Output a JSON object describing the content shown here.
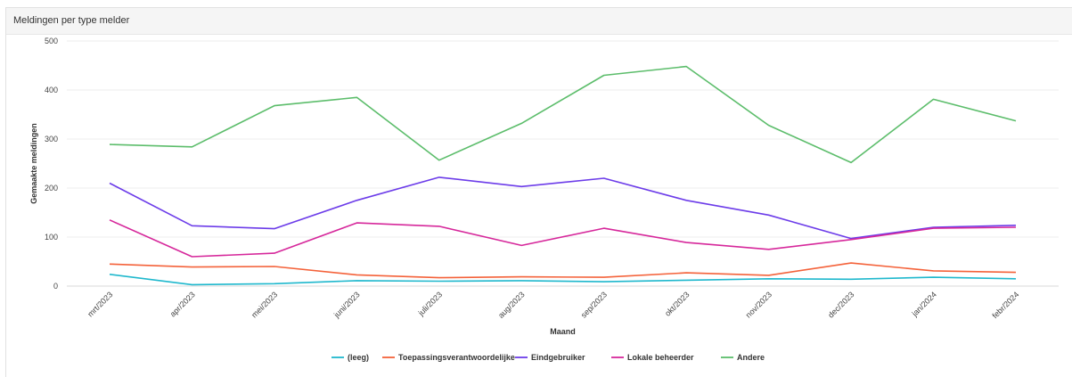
{
  "panel": {
    "title": "Meldingen per type melder"
  },
  "chart_data": {
    "type": "line",
    "title": "Meldingen per type melder",
    "xlabel": "Maand",
    "ylabel": "Gemaakte meldingen",
    "ylim": [
      0,
      500
    ],
    "yticks": [
      0,
      100,
      200,
      300,
      400,
      500
    ],
    "grid": true,
    "legend_position": "bottom",
    "categories": [
      "mrt/2023",
      "apr/2023",
      "mei/2023",
      "juni/2023",
      "juli/2023",
      "aug/2023",
      "sep/2023",
      "okt/2023",
      "nov/2023",
      "dec/2023",
      "jan/2024",
      "febr/2024"
    ],
    "series": [
      {
        "name": "(leeg)",
        "color": "#1fb8cd",
        "values": [
          24,
          3,
          5,
          11,
          10,
          11,
          9,
          12,
          15,
          14,
          18,
          15
        ]
      },
      {
        "name": "Toepassingsverantwoordelijke",
        "color": "#f4623a",
        "values": [
          45,
          39,
          40,
          23,
          17,
          19,
          18,
          27,
          22,
          47,
          31,
          28
        ]
      },
      {
        "name": "Eindgebruiker",
        "color": "#6c3ce9",
        "values": [
          210,
          123,
          117,
          175,
          222,
          203,
          220,
          175,
          145,
          97,
          120,
          124
        ]
      },
      {
        "name": "Lokale beheerder",
        "color": "#d6289b",
        "values": [
          135,
          60,
          67,
          129,
          122,
          83,
          118,
          89,
          75,
          95,
          118,
          120
        ]
      },
      {
        "name": "Andere",
        "color": "#5cbd6b",
        "values": [
          289,
          284,
          368,
          385,
          257,
          332,
          430,
          448,
          328,
          252,
          381,
          337
        ]
      }
    ]
  }
}
